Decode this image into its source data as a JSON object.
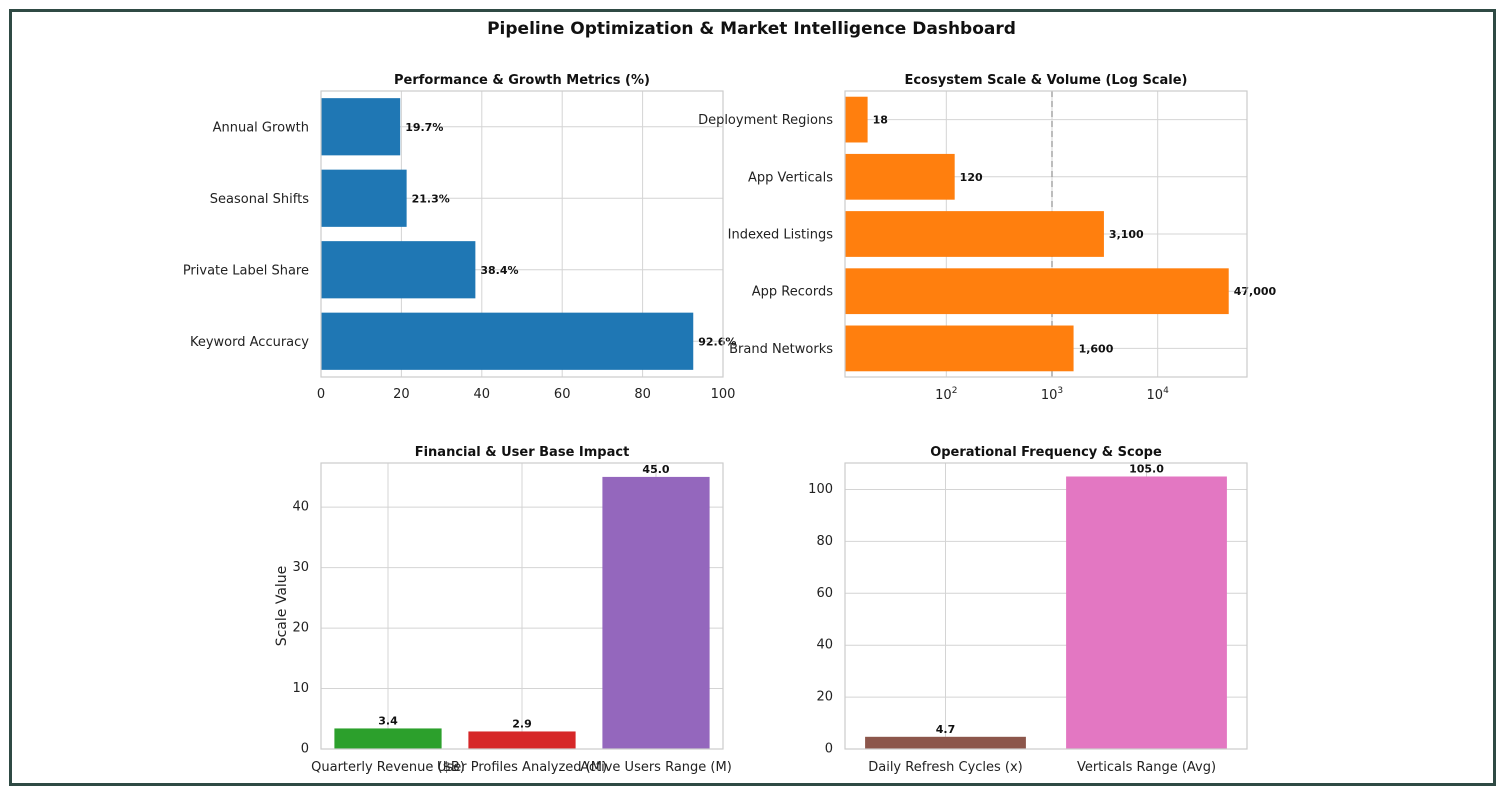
{
  "dashboard": {
    "title": "Pipeline Optimization & Market Intelligence Dashboard"
  },
  "colors": {
    "border": "#2f4a44",
    "blue": "#1f77b4",
    "orange": "#ff7f0e",
    "green": "#2ca02c",
    "red": "#d62728",
    "purple": "#9467bd",
    "brown": "#8c564b",
    "pink": "#e377c2"
  },
  "chart_data": [
    {
      "id": "performance",
      "type": "bar",
      "orientation": "horizontal",
      "title": "Performance & Growth Metrics (%)",
      "categories": [
        "Annual Growth",
        "Seasonal Shifts",
        "Private Label Share",
        "Keyword Accuracy"
      ],
      "values": [
        19.7,
        21.3,
        38.4,
        92.6
      ],
      "data_labels": [
        "19.7%",
        "21.3%",
        "38.4%",
        "92.6%"
      ],
      "xlim": [
        0,
        100
      ],
      "xticks": [
        0,
        20,
        40,
        60,
        80,
        100
      ],
      "xticklabels": [
        "0",
        "20",
        "40",
        "60",
        "80",
        "100"
      ],
      "color": "#1f77b4",
      "grid": true
    },
    {
      "id": "ecosystem",
      "type": "bar",
      "orientation": "horizontal",
      "title": "Ecosystem Scale & Volume (Log Scale)",
      "xscale": "log",
      "categories": [
        "Deployment Regions",
        "App Verticals",
        "Indexed Listings",
        "App Records",
        "Brand Networks"
      ],
      "values": [
        18,
        120,
        3100,
        47000,
        1600
      ],
      "data_labels": [
        "18",
        "120",
        "3,100",
        "47,000",
        "1,600"
      ],
      "xlim": [
        11,
        70000
      ],
      "xticks": [
        100,
        1000,
        10000
      ],
      "xtick_base": "10",
      "xtick_exponents": [
        "2",
        "3",
        "4"
      ],
      "reference_line": 1000,
      "color": "#ff7f0e",
      "grid": true
    },
    {
      "id": "financial",
      "type": "bar",
      "orientation": "vertical",
      "title": "Financial & User Base Impact",
      "ylabel": "Scale Value",
      "categories": [
        "Quarterly Revenue ($B)",
        "User Profiles Analyzed (M)",
        "Active Users Range (M)"
      ],
      "values": [
        3.4,
        2.9,
        45.0
      ],
      "data_labels": [
        "3.4",
        "2.9",
        "45.0"
      ],
      "colors": [
        "#2ca02c",
        "#d62728",
        "#9467bd"
      ],
      "ylim": [
        0,
        47.3
      ],
      "yticks": [
        0,
        10,
        20,
        30,
        40
      ],
      "yticklabels": [
        "0",
        "10",
        "20",
        "30",
        "40"
      ],
      "grid": true
    },
    {
      "id": "operational",
      "type": "bar",
      "orientation": "vertical",
      "title": "Operational Frequency & Scope",
      "categories": [
        "Daily Refresh Cycles (x)",
        "Verticals Range (Avg)"
      ],
      "values": [
        4.7,
        105.0
      ],
      "data_labels": [
        "4.7",
        "105.0"
      ],
      "colors": [
        "#8c564b",
        "#e377c2"
      ],
      "ylim": [
        0,
        110.2
      ],
      "yticks": [
        0,
        20,
        40,
        60,
        80,
        100
      ],
      "yticklabels": [
        "0",
        "20",
        "40",
        "60",
        "80",
        "100"
      ],
      "grid": true
    }
  ]
}
